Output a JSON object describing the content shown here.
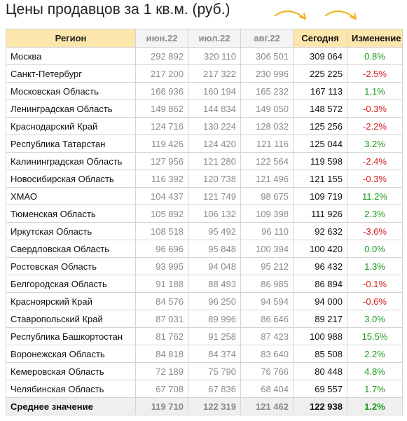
{
  "title": "Цены продавцов за 1 кв.м. (руб.)",
  "colors": {
    "positive": "#1a9a1a",
    "negative": "#d92020",
    "header_highlight": "#fce6ab",
    "arrow": "#f2b21b"
  },
  "icons": [
    "curved-arrow-icon",
    "curved-arrow-icon"
  ],
  "headers": [
    "Регион",
    "июн.22",
    "июл.22",
    "авг.22",
    "Сегодня",
    "Изменение"
  ],
  "rows": [
    {
      "region": "Москва",
      "jun": "292 892",
      "jul": "320 110",
      "aug": "306 501",
      "today": "309 064",
      "change": "0.8%"
    },
    {
      "region": "Санкт-Петербург",
      "jun": "217 200",
      "jul": "217 322",
      "aug": "230 996",
      "today": "225 225",
      "change": "-2.5%"
    },
    {
      "region": "Московская Область",
      "jun": "166 936",
      "jul": "160 194",
      "aug": "165 232",
      "today": "167 113",
      "change": "1.1%"
    },
    {
      "region": "Ленинградская Область",
      "jun": "149 862",
      "jul": "144 834",
      "aug": "149 050",
      "today": "148 572",
      "change": "-0.3%"
    },
    {
      "region": "Краснодарский Край",
      "jun": "124 716",
      "jul": "130 224",
      "aug": "128 032",
      "today": "125 256",
      "change": "-2.2%"
    },
    {
      "region": "Республика Татарстан",
      "jun": "119 426",
      "jul": "124 420",
      "aug": "121 116",
      "today": "125 044",
      "change": "3.2%"
    },
    {
      "region": "Калининградская Область",
      "jun": "127 956",
      "jul": "121 280",
      "aug": "122 564",
      "today": "119 598",
      "change": "-2.4%"
    },
    {
      "region": "Новосибирская Область",
      "jun": "116 392",
      "jul": "120 738",
      "aug": "121 496",
      "today": "121 155",
      "change": "-0.3%"
    },
    {
      "region": "ХМАО",
      "jun": "104 437",
      "jul": "121 749",
      "aug": "98 675",
      "today": "109 719",
      "change": "11.2%"
    },
    {
      "region": "Тюменская Область",
      "jun": "105 892",
      "jul": "106 132",
      "aug": "109 398",
      "today": "111 926",
      "change": "2.3%"
    },
    {
      "region": "Иркутская Область",
      "jun": "108 518",
      "jul": "95 492",
      "aug": "96 110",
      "today": "92 632",
      "change": "-3.6%"
    },
    {
      "region": "Свердловская Область",
      "jun": "96 696",
      "jul": "95 848",
      "aug": "100 394",
      "today": "100 420",
      "change": "0.0%"
    },
    {
      "region": "Ростовская Область",
      "jun": "93 995",
      "jul": "94 048",
      "aug": "95 212",
      "today": "96 432",
      "change": "1.3%"
    },
    {
      "region": "Белгородская Область",
      "jun": "91 188",
      "jul": "88 493",
      "aug": "86 985",
      "today": "86 894",
      "change": "-0.1%"
    },
    {
      "region": "Красноярский Край",
      "jun": "84 576",
      "jul": "96 250",
      "aug": "94 594",
      "today": "94 000",
      "change": "-0.6%"
    },
    {
      "region": "Ставропольский Край",
      "jun": "87 031",
      "jul": "89 996",
      "aug": "86 646",
      "today": "89 217",
      "change": "3.0%"
    },
    {
      "region": "Республика Башкортостан",
      "jun": "81 762",
      "jul": "91 258",
      "aug": "87 423",
      "today": "100 988",
      "change": "15.5%"
    },
    {
      "region": "Воронежская Область",
      "jun": "84 818",
      "jul": "84 374",
      "aug": "83 640",
      "today": "85 508",
      "change": "2.2%"
    },
    {
      "region": "Кемеровская Область",
      "jun": "72 189",
      "jul": "75 790",
      "aug": "76 766",
      "today": "80 448",
      "change": "4.8%"
    },
    {
      "region": "Челябинская Область",
      "jun": "67 708",
      "jul": "67 836",
      "aug": "68 404",
      "today": "69 557",
      "change": "1.7%"
    }
  ],
  "average": {
    "region": "Среднее значение",
    "jun": "119 710",
    "jul": "122 319",
    "aug": "121 462",
    "today": "122 938",
    "change": "1.2%"
  }
}
